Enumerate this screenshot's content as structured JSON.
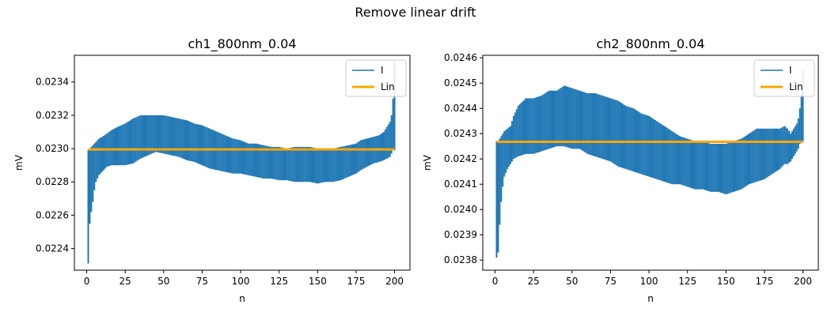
{
  "figure": {
    "suptitle": "Remove linear drift"
  },
  "colors": {
    "trace": "#1f77b4",
    "fit": "#ffa500"
  },
  "chart_data": [
    {
      "type": "line",
      "title": "ch1_800nm_0.04",
      "xlabel": "n",
      "ylabel": "mV",
      "xlim": [
        -8,
        210
      ],
      "ylim": [
        0.02227,
        0.02356
      ],
      "xticks": [
        0,
        25,
        50,
        75,
        100,
        125,
        150,
        175,
        200
      ],
      "yticks": [
        0.0224,
        0.0226,
        0.0228,
        0.023,
        0.0232,
        0.0234
      ],
      "ytick_labels": [
        "0.0224",
        "0.0226",
        "0.0228",
        "0.0230",
        "0.0232",
        "0.0234"
      ],
      "legend_loc": "top-right",
      "series": [
        {
          "name": "I",
          "kind": "band",
          "x": [
            1,
            2,
            3,
            4,
            5,
            6,
            8,
            10,
            13,
            16,
            20,
            25,
            30,
            35,
            40,
            45,
            50,
            55,
            60,
            65,
            70,
            75,
            80,
            85,
            90,
            95,
            100,
            105,
            110,
            115,
            120,
            125,
            130,
            135,
            140,
            145,
            150,
            155,
            160,
            165,
            170,
            175,
            178,
            182,
            186,
            190,
            193,
            195,
            197,
            198,
            199,
            200
          ],
          "upper": [
            0.02299,
            0.023,
            0.02301,
            0.02302,
            0.02303,
            0.02304,
            0.02306,
            0.02307,
            0.02309,
            0.02311,
            0.02313,
            0.02315,
            0.02318,
            0.0232,
            0.0232,
            0.0232,
            0.0232,
            0.02319,
            0.02318,
            0.02317,
            0.02315,
            0.02314,
            0.02312,
            0.0231,
            0.02308,
            0.02306,
            0.02305,
            0.02303,
            0.02303,
            0.02302,
            0.02301,
            0.02301,
            0.023,
            0.02301,
            0.02301,
            0.02301,
            0.023,
            0.023,
            0.023,
            0.02301,
            0.02302,
            0.02303,
            0.02305,
            0.02306,
            0.02307,
            0.02308,
            0.0231,
            0.02313,
            0.02316,
            0.0232,
            0.0233,
            0.02352
          ],
          "lower": [
            0.02231,
            0.02255,
            0.02262,
            0.02268,
            0.02275,
            0.0228,
            0.02284,
            0.02286,
            0.02289,
            0.0229,
            0.0229,
            0.0229,
            0.02291,
            0.02294,
            0.02296,
            0.02298,
            0.02297,
            0.02296,
            0.02295,
            0.02293,
            0.02292,
            0.0229,
            0.02288,
            0.02287,
            0.02286,
            0.02285,
            0.02285,
            0.02284,
            0.02283,
            0.02282,
            0.02282,
            0.02281,
            0.02281,
            0.0228,
            0.0228,
            0.0228,
            0.02279,
            0.0228,
            0.0228,
            0.02281,
            0.02283,
            0.02285,
            0.02287,
            0.02289,
            0.02291,
            0.02292,
            0.02293,
            0.02294,
            0.02295,
            0.02297,
            0.02299,
            0.02299
          ]
        },
        {
          "name": "Lin",
          "kind": "line",
          "x": [
            1,
            200
          ],
          "values": [
            0.022995,
            0.022995
          ]
        }
      ]
    },
    {
      "type": "line",
      "title": "ch2_800nm_0.04",
      "xlabel": "n",
      "ylabel": "mV",
      "xlim": [
        -8,
        210
      ],
      "ylim": [
        0.02376,
        0.02461
      ],
      "xticks": [
        0,
        25,
        50,
        75,
        100,
        125,
        150,
        175,
        200
      ],
      "yticks": [
        0.0238,
        0.0239,
        0.024,
        0.0241,
        0.0242,
        0.0243,
        0.0244,
        0.0245,
        0.0246
      ],
      "ytick_labels": [
        "0.0238",
        "0.0239",
        "0.0240",
        "0.0241",
        "0.0242",
        "0.0243",
        "0.0244",
        "0.0245",
        "0.0246"
      ],
      "legend_loc": "top-right",
      "series": [
        {
          "name": "I",
          "kind": "band",
          "x": [
            1,
            2,
            3,
            4,
            5,
            6,
            8,
            10,
            12,
            15,
            20,
            25,
            30,
            35,
            40,
            45,
            50,
            55,
            60,
            65,
            70,
            75,
            80,
            85,
            90,
            95,
            100,
            105,
            110,
            115,
            120,
            125,
            130,
            135,
            140,
            145,
            150,
            155,
            160,
            165,
            170,
            175,
            180,
            185,
            188,
            190,
            192,
            194,
            196,
            197,
            198,
            199,
            200
          ],
          "upper": [
            0.02427,
            0.02427,
            0.02428,
            0.02429,
            0.0243,
            0.02431,
            0.02432,
            0.02433,
            0.02437,
            0.02441,
            0.02444,
            0.02444,
            0.02445,
            0.02447,
            0.02447,
            0.02449,
            0.02448,
            0.02447,
            0.02446,
            0.02446,
            0.02445,
            0.02444,
            0.02443,
            0.02441,
            0.0244,
            0.02438,
            0.02437,
            0.02435,
            0.02433,
            0.02431,
            0.02429,
            0.02428,
            0.02427,
            0.02427,
            0.02426,
            0.02426,
            0.02426,
            0.02427,
            0.02428,
            0.0243,
            0.02432,
            0.02432,
            0.02432,
            0.02432,
            0.02433,
            0.02432,
            0.0243,
            0.02432,
            0.02434,
            0.02436,
            0.0244,
            0.02446,
            0.02455
          ],
          "lower": [
            0.02381,
            0.02383,
            0.02394,
            0.02403,
            0.02409,
            0.02413,
            0.02416,
            0.02418,
            0.0242,
            0.02421,
            0.02422,
            0.02422,
            0.02423,
            0.02424,
            0.02425,
            0.02425,
            0.02424,
            0.02424,
            0.02422,
            0.02421,
            0.0242,
            0.02419,
            0.02417,
            0.02416,
            0.02415,
            0.02414,
            0.02413,
            0.02412,
            0.02411,
            0.0241,
            0.0241,
            0.02409,
            0.02408,
            0.02408,
            0.02407,
            0.02407,
            0.02406,
            0.02407,
            0.02408,
            0.0241,
            0.02411,
            0.02412,
            0.02414,
            0.02416,
            0.02418,
            0.02418,
            0.02419,
            0.02421,
            0.02423,
            0.02424,
            0.02426,
            0.02427,
            0.02427
          ]
        },
        {
          "name": "Lin",
          "kind": "line",
          "x": [
            1,
            200
          ],
          "values": [
            0.024268,
            0.024268
          ]
        }
      ]
    }
  ]
}
